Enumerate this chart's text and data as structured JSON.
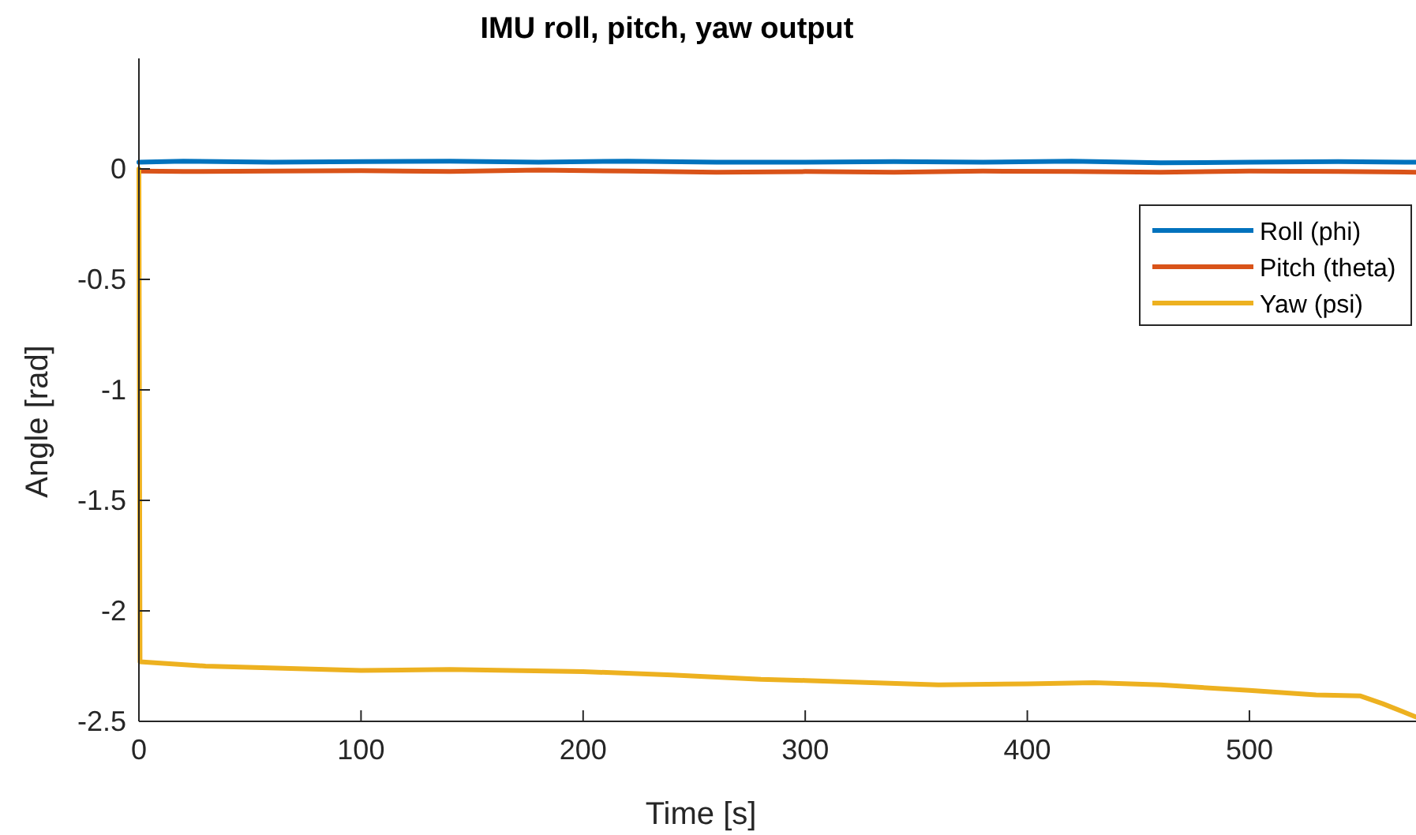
{
  "chart_data": {
    "type": "line",
    "title": "IMU roll, pitch, yaw output",
    "xlabel": "Time [s]",
    "ylabel": "Angle [rad]",
    "xlim": [
      0,
      575
    ],
    "xticks": [
      0,
      100,
      200,
      300,
      400,
      500
    ],
    "ylim": [
      -2.5,
      0.5
    ],
    "yticks": [
      -2.5,
      -2,
      -1.5,
      -1,
      -0.5,
      0
    ],
    "grid": false,
    "legend": "top right",
    "line_style": "solid",
    "marker": "none",
    "series": [
      {
        "name": "Roll (phi)",
        "color": "#0072bd",
        "x": [
          0,
          20,
          60,
          100,
          140,
          180,
          220,
          260,
          300,
          340,
          380,
          420,
          460,
          500,
          540,
          575
        ],
        "values": [
          0.03,
          0.035,
          0.03,
          0.033,
          0.035,
          0.03,
          0.035,
          0.03,
          0.03,
          0.033,
          0.03,
          0.035,
          0.028,
          0.03,
          0.033,
          0.03
        ]
      },
      {
        "name": "Pitch (theta)",
        "color": "#d95319",
        "x": [
          0,
          20,
          60,
          100,
          140,
          180,
          220,
          260,
          300,
          340,
          380,
          420,
          460,
          500,
          540,
          575
        ],
        "values": [
          -0.01,
          -0.012,
          -0.01,
          -0.008,
          -0.012,
          -0.005,
          -0.01,
          -0.015,
          -0.012,
          -0.015,
          -0.01,
          -0.012,
          -0.015,
          -0.01,
          -0.012,
          -0.015
        ]
      },
      {
        "name": "Yaw (psi)",
        "color": "#edb120",
        "x": [
          0,
          0.5,
          30,
          100,
          140,
          200,
          240,
          280,
          300,
          360,
          400,
          430,
          460,
          500,
          530,
          550,
          560,
          575
        ],
        "values": [
          0,
          -2.23,
          -2.25,
          -2.27,
          -2.265,
          -2.275,
          -2.29,
          -2.31,
          -2.315,
          -2.335,
          -2.33,
          -2.325,
          -2.335,
          -2.36,
          -2.38,
          -2.385,
          -2.42,
          -2.48
        ]
      }
    ]
  }
}
